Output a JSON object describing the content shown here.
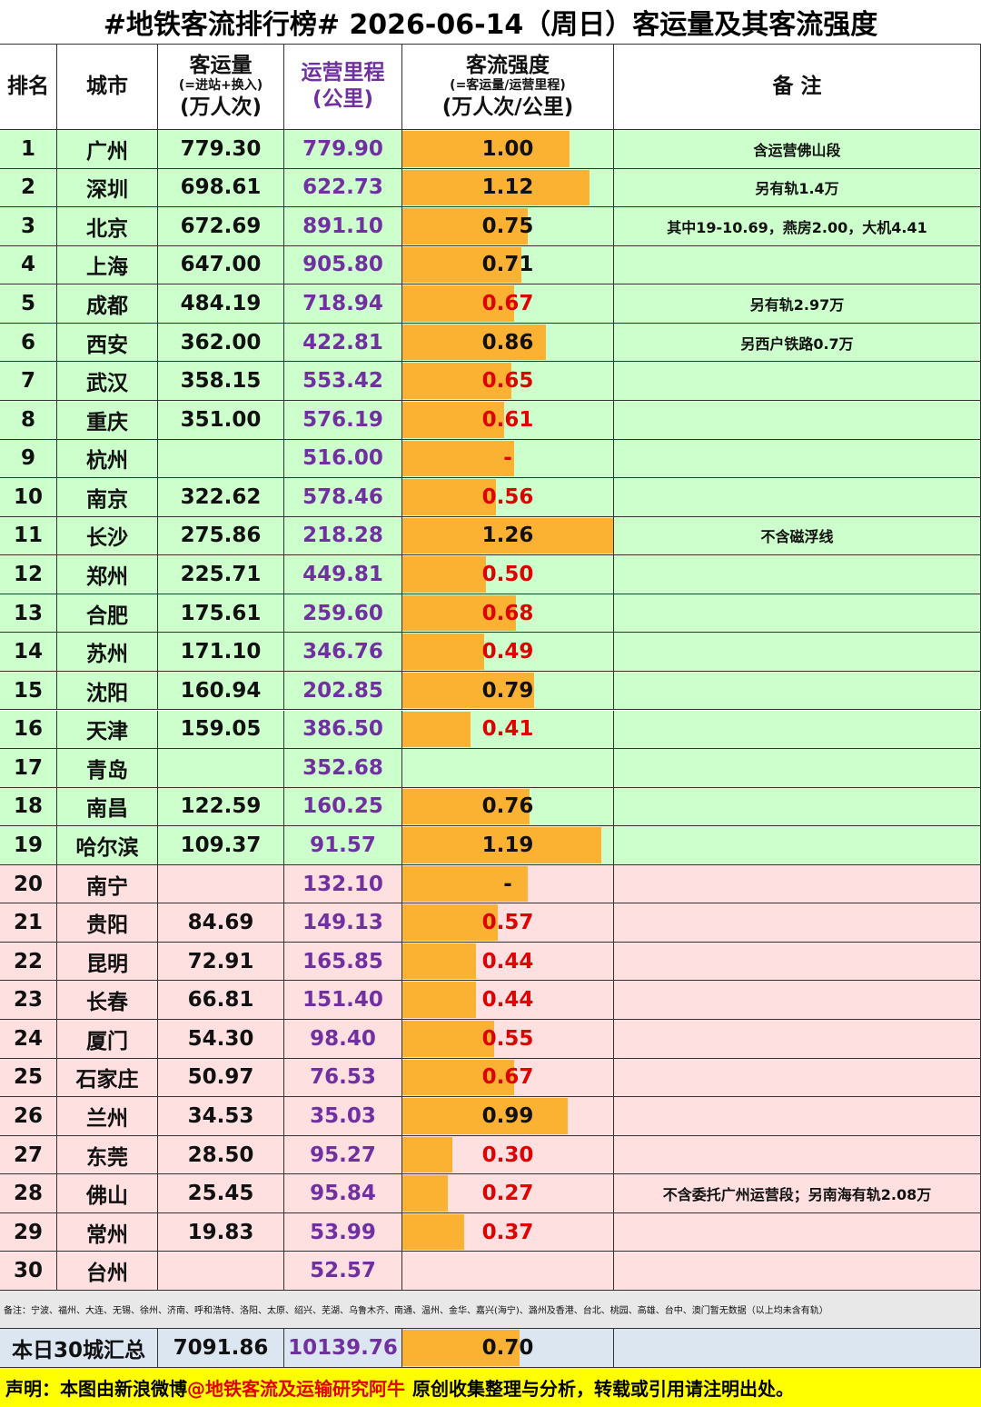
{
  "header": {
    "title": "#地铁客流排行榜# 2026-06-14（周日）客运量及其客流强度"
  },
  "table": {
    "columns": {
      "rank": "排名",
      "city": "城市",
      "ridership": [
        "客运量",
        "(=进站+换入)",
        "(万人次)"
      ],
      "length": [
        "运营里程",
        "(公里)"
      ],
      "intensity": [
        "客流强度",
        "(=客运量/运营里程)",
        "(万人次/公里)"
      ],
      "note": "备  注"
    },
    "row_colors": [
      "#ccffcc",
      "#ffe0e0"
    ],
    "bar_color": "#fbb232",
    "below_average_color": "#e00000",
    "rows": [
      {
        "rank": "1",
        "city": "广州",
        "ridership": "779.30",
        "length": "779.90",
        "intensity": {
          "value": 1.0,
          "label": "1.00"
        },
        "note": "含运营佛山段",
        "tier": 0
      },
      {
        "rank": "2",
        "city": "深圳",
        "ridership": "698.61",
        "length": "622.73",
        "intensity": {
          "value": 1.12,
          "label": "1.12"
        },
        "note": "另有轨1.4万",
        "tier": 0
      },
      {
        "rank": "3",
        "city": "北京",
        "ridership": "672.69",
        "length": "891.10",
        "intensity": {
          "value": 0.75,
          "label": "0.75"
        },
        "note": "其中19-10.69，燕房2.00，大机4.41",
        "tier": 0
      },
      {
        "rank": "4",
        "city": "上海",
        "ridership": "647.00",
        "length": "905.80",
        "intensity": {
          "value": 0.71,
          "label": "0.71"
        },
        "note": null,
        "tier": 0
      },
      {
        "rank": "5",
        "city": "成都",
        "ridership": "484.19",
        "length": "718.94",
        "intensity": {
          "value": 0.67,
          "label": "0.67"
        },
        "note": "另有轨2.97万",
        "tier": 0
      },
      {
        "rank": "6",
        "city": "西安",
        "ridership": "362.00",
        "length": "422.81",
        "intensity": {
          "value": 0.86,
          "label": "0.86"
        },
        "note": "另西户铁路0.7万",
        "tier": 0
      },
      {
        "rank": "7",
        "city": "武汉",
        "ridership": "358.15",
        "length": "553.42",
        "intensity": {
          "value": 0.65,
          "label": "0.65"
        },
        "note": null,
        "tier": 0
      },
      {
        "rank": "8",
        "city": "重庆",
        "ridership": "351.00",
        "length": "576.19",
        "intensity": {
          "value": 0.61,
          "label": "0.61"
        },
        "note": null,
        "tier": 0
      },
      {
        "rank": "9",
        "city": "杭州",
        "ridership": null,
        "length": "516.00",
        "intensity": {
          "value": 0.67,
          "label": "-"
        },
        "note": null,
        "tier": 0
      },
      {
        "rank": "10",
        "city": "南京",
        "ridership": "322.62",
        "length": "578.46",
        "intensity": {
          "value": 0.56,
          "label": "0.56"
        },
        "note": null,
        "tier": 0
      },
      {
        "rank": "11",
        "city": "长沙",
        "ridership": "275.86",
        "length": "218.28",
        "intensity": {
          "value": 1.26,
          "label": "1.26"
        },
        "note": "不含磁浮线",
        "tier": 0
      },
      {
        "rank": "12",
        "city": "郑州",
        "ridership": "225.71",
        "length": "449.81",
        "intensity": {
          "value": 0.5,
          "label": "0.50"
        },
        "note": null,
        "tier": 0
      },
      {
        "rank": "13",
        "city": "合肥",
        "ridership": "175.61",
        "length": "259.60",
        "intensity": {
          "value": 0.68,
          "label": "0.68"
        },
        "note": null,
        "tier": 0
      },
      {
        "rank": "14",
        "city": "苏州",
        "ridership": "171.10",
        "length": "346.76",
        "intensity": {
          "value": 0.49,
          "label": "0.49"
        },
        "note": null,
        "tier": 0
      },
      {
        "rank": "15",
        "city": "沈阳",
        "ridership": "160.94",
        "length": "202.85",
        "intensity": {
          "value": 0.79,
          "label": "0.79"
        },
        "note": null,
        "tier": 0
      },
      {
        "rank": "16",
        "city": "天津",
        "ridership": "159.05",
        "length": "386.50",
        "intensity": {
          "value": 0.41,
          "label": "0.41"
        },
        "note": null,
        "tier": 0
      },
      {
        "rank": "17",
        "city": "青岛",
        "ridership": null,
        "length": "352.68",
        "intensity": null,
        "note": null,
        "tier": 0
      },
      {
        "rank": "18",
        "city": "南昌",
        "ridership": "122.59",
        "length": "160.25",
        "intensity": {
          "value": 0.76,
          "label": "0.76"
        },
        "note": null,
        "tier": 0
      },
      {
        "rank": "19",
        "city": "哈尔滨",
        "ridership": "109.37",
        "length": "91.57",
        "intensity": {
          "value": 1.19,
          "label": "1.19"
        },
        "note": null,
        "tier": 0
      },
      {
        "rank": "20",
        "city": "南宁",
        "ridership": null,
        "length": "132.10",
        "intensity": {
          "value": 0.75,
          "label": "-"
        },
        "note": null,
        "tier": 1
      },
      {
        "rank": "21",
        "city": "贵阳",
        "ridership": "84.69",
        "length": "149.13",
        "intensity": {
          "value": 0.57,
          "label": "0.57"
        },
        "note": null,
        "tier": 1
      },
      {
        "rank": "22",
        "city": "昆明",
        "ridership": "72.91",
        "length": "165.85",
        "intensity": {
          "value": 0.44,
          "label": "0.44"
        },
        "note": null,
        "tier": 1
      },
      {
        "rank": "23",
        "city": "长春",
        "ridership": "66.81",
        "length": "151.40",
        "intensity": {
          "value": 0.44,
          "label": "0.44"
        },
        "note": null,
        "tier": 1
      },
      {
        "rank": "24",
        "city": "厦门",
        "ridership": "54.30",
        "length": "98.40",
        "intensity": {
          "value": 0.55,
          "label": "0.55"
        },
        "note": null,
        "tier": 1
      },
      {
        "rank": "25",
        "city": "石家庄",
        "ridership": "50.97",
        "length": "76.53",
        "intensity": {
          "value": 0.67,
          "label": "0.67"
        },
        "note": null,
        "tier": 1
      },
      {
        "rank": "26",
        "city": "兰州",
        "ridership": "34.53",
        "length": "35.03",
        "intensity": {
          "value": 0.99,
          "label": "0.99"
        },
        "note": null,
        "tier": 1
      },
      {
        "rank": "27",
        "city": "东莞",
        "ridership": "28.50",
        "length": "95.27",
        "intensity": {
          "value": 0.3,
          "label": "0.30"
        },
        "note": null,
        "tier": 1
      },
      {
        "rank": "28",
        "city": "佛山",
        "ridership": "25.45",
        "length": "95.84",
        "intensity": {
          "value": 0.27,
          "label": "0.27"
        },
        "note": "不含委托广州运营段；另南海有轨2.08万",
        "tier": 1
      },
      {
        "rank": "29",
        "city": "常州",
        "ridership": "19.83",
        "length": "53.99",
        "intensity": {
          "value": 0.37,
          "label": "0.37"
        },
        "note": null,
        "tier": 1
      },
      {
        "rank": "30",
        "city": "台州",
        "ridership": null,
        "length": "52.57",
        "intensity": null,
        "note": null,
        "tier": 1
      }
    ],
    "footnote": "备注：宁波、福州、大连、无锡、徐州、济南、呼和浩特、洛阳、太原、绍兴、芜湖、乌鲁木齐、南通、温州、金华、嘉兴(海宁)、潞州及香港、台北、桃园、高雄、台中、澳门暂无数据（以上均未含有轨）",
    "total": {
      "label": "本日30城汇总",
      "ridership": "7091.86",
      "length": "10139.76",
      "intensity": {
        "value": 0.7,
        "label": "0.70"
      }
    }
  },
  "footer": {
    "parts": [
      "声明：本图由新浪微博",
      "@地铁客流及运输研究阿牛",
      "原创收集整理与分析，转载或引用请注明出处。"
    ]
  }
}
